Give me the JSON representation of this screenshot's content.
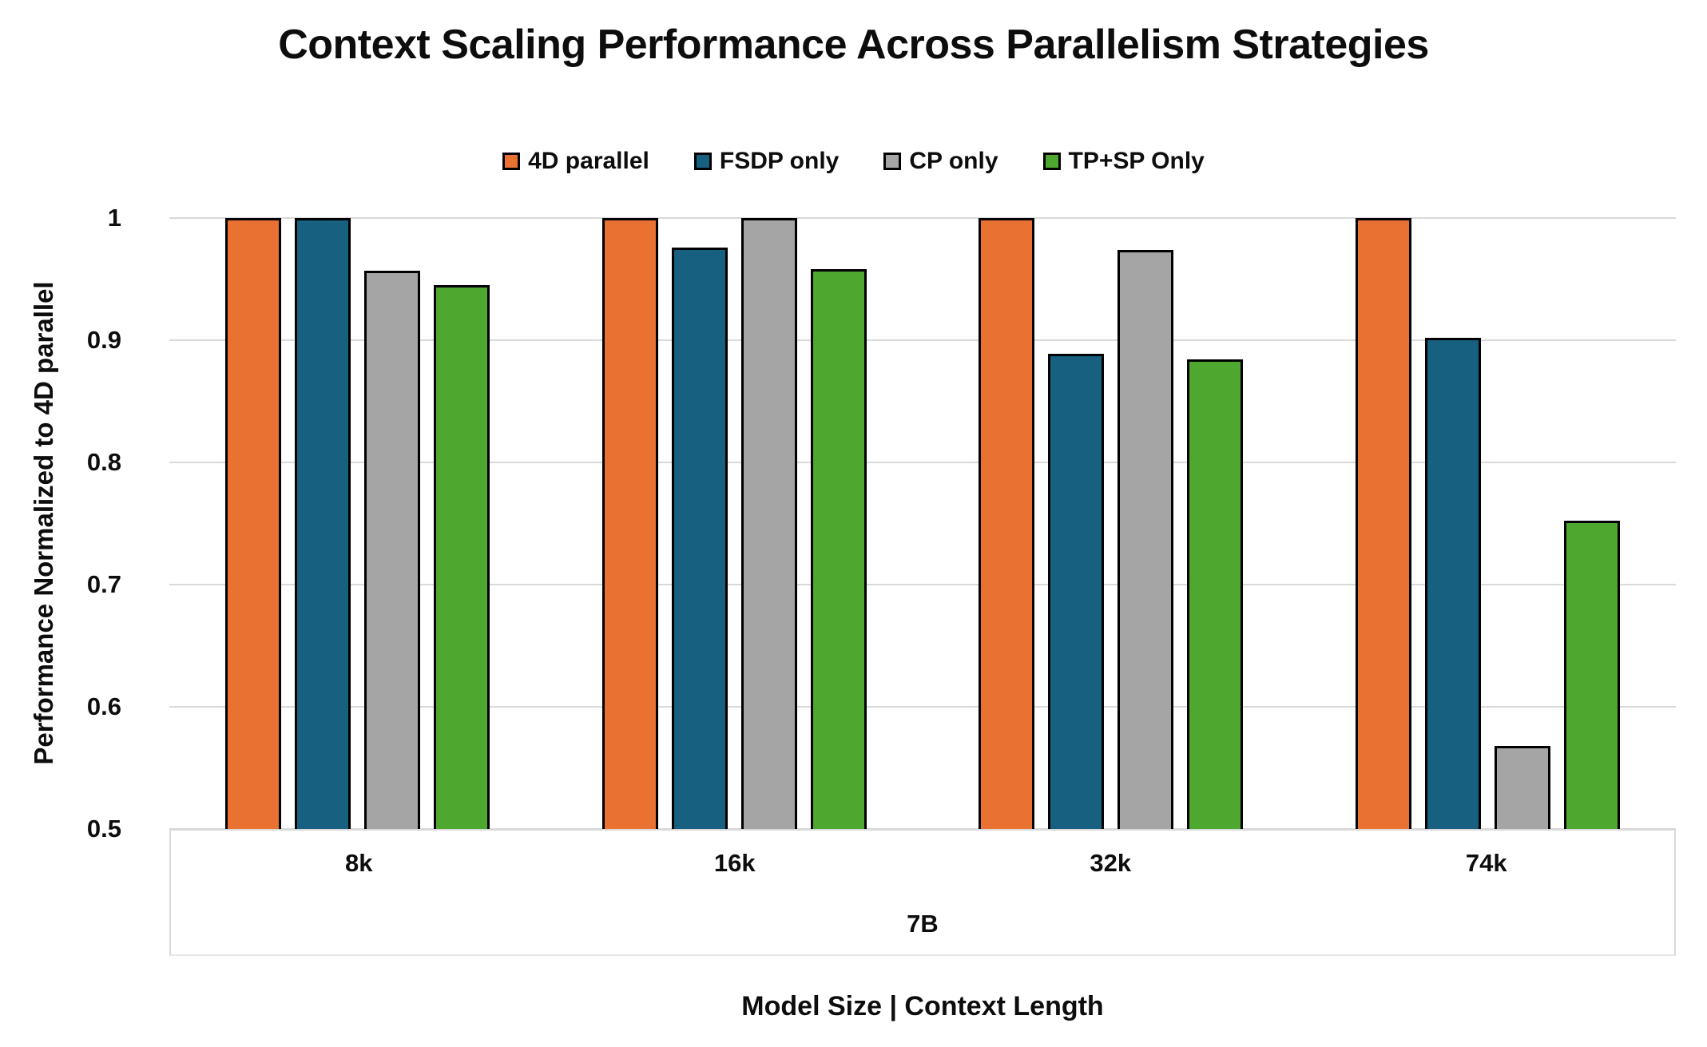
{
  "chart_data": {
    "type": "bar",
    "title": "Context Scaling Performance Across Parallelism Strategies",
    "ylabel": "Performance Normalized to 4D parallel",
    "xlabel": "Model Size | Context Length",
    "group_label": "7B",
    "categories": [
      "8k",
      "16k",
      "32k",
      "74k"
    ],
    "series": [
      {
        "name": "4D parallel",
        "color": "#E97132",
        "values": [
          1.0,
          1.0,
          1.0,
          1.0
        ]
      },
      {
        "name": "FSDP only",
        "color": "#17607F",
        "values": [
          1.0,
          0.976,
          0.889,
          0.902
        ]
      },
      {
        "name": "CP only",
        "color": "#A5A5A5",
        "values": [
          0.957,
          1.0,
          0.974,
          0.568
        ]
      },
      {
        "name": "TP+SP Only",
        "color": "#4EA72E",
        "values": [
          0.945,
          0.958,
          0.884,
          0.752
        ]
      }
    ],
    "ylim": [
      0.5,
      1.0
    ],
    "yticks": {
      "values": [
        1.0,
        0.9,
        0.8,
        0.7,
        0.6,
        0.5
      ],
      "labels": [
        "1",
        "0.9",
        "0.8",
        "0.7",
        "0.6",
        "0.5"
      ]
    },
    "grid": true,
    "legend_position": "top"
  }
}
